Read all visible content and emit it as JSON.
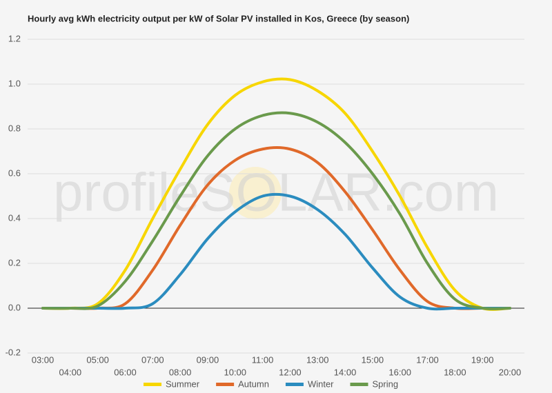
{
  "chart_data": {
    "type": "line",
    "title": "Hourly avg kWh electricity output per kW of Solar PV installed in Kos, Greece (by season)",
    "watermark": "profileSOLAR.com",
    "categories": [
      "03:00",
      "04:00",
      "05:00",
      "06:00",
      "07:00",
      "08:00",
      "09:00",
      "10:00",
      "11:00",
      "12:00",
      "13:00",
      "14:00",
      "15:00",
      "16:00",
      "17:00",
      "18:00",
      "19:00",
      "20:00"
    ],
    "series": [
      {
        "name": "Summer",
        "color": "#f7d600",
        "values": [
          0,
          0,
          0.02,
          0.17,
          0.4,
          0.62,
          0.82,
          0.95,
          1.01,
          1.02,
          0.97,
          0.87,
          0.7,
          0.5,
          0.27,
          0.08,
          0,
          0
        ]
      },
      {
        "name": "Autumn",
        "color": "#e0692a",
        "values": [
          0,
          0,
          0,
          0.02,
          0.17,
          0.37,
          0.55,
          0.66,
          0.71,
          0.71,
          0.65,
          0.52,
          0.35,
          0.17,
          0.03,
          0,
          0,
          0
        ]
      },
      {
        "name": "Winter",
        "color": "#2b8cbf",
        "values": [
          0,
          0,
          0,
          0,
          0.02,
          0.15,
          0.31,
          0.43,
          0.5,
          0.5,
          0.44,
          0.33,
          0.18,
          0.05,
          0,
          0,
          0,
          0
        ]
      },
      {
        "name": "Spring",
        "color": "#6a9a4c",
        "values": [
          0,
          0,
          0.01,
          0.12,
          0.3,
          0.5,
          0.68,
          0.8,
          0.86,
          0.87,
          0.83,
          0.74,
          0.6,
          0.42,
          0.2,
          0.04,
          0,
          0
        ]
      }
    ],
    "ylim": [
      -0.2,
      1.2
    ],
    "yticks": [
      -0.2,
      {
        "value": 0,
        "label": "0.0"
      },
      0.2,
      0.4,
      0.6,
      0.8,
      {
        "value": 1,
        "label": "1.0"
      },
      1.2
    ],
    "grid": true
  }
}
